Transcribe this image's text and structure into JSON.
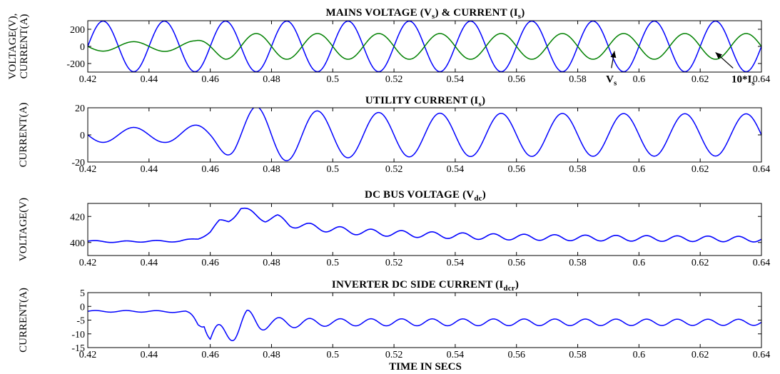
{
  "figure": {
    "xlabel": "TIME IN SECS"
  },
  "chart_data": [
    {
      "type": "line",
      "title": {
        "main": "MAINS VOLTAGE (V",
        "sub1": "s",
        "mid": ") & CURRENT (I",
        "sub2": "s",
        "end": ")"
      },
      "ylabel_lines": [
        "VOLTAGE(V),",
        "CURRENT(A)"
      ],
      "xlim": [
        0.42,
        0.64
      ],
      "ylim": [
        -300,
        300
      ],
      "xticks": [
        "0.42",
        "0.44",
        "0.46",
        "0.48",
        "0.5",
        "0.52",
        "0.54",
        "0.56",
        "0.58",
        "0.6",
        "0.62",
        "0.64"
      ],
      "yticks": [
        200,
        0,
        -200
      ],
      "frequency_hz": 50,
      "series": [
        {
          "name": "V",
          "name_sub": "s",
          "color": "#0000ff",
          "model": "sine",
          "x_start": 0.42,
          "x_end": 0.64,
          "amplitude_points": [
            [
              0.42,
              295
            ],
            [
              0.64,
              295
            ]
          ],
          "phase_deg": 0,
          "peak_at": 0.425
        },
        {
          "name": "10*I",
          "name_sub": "s",
          "color": "#008000",
          "model": "sine",
          "x_start": 0.42,
          "x_end": 0.64,
          "amplitude_points": [
            [
              0.42,
              55
            ],
            [
              0.44,
              55
            ],
            [
              0.455,
              65
            ],
            [
              0.465,
              150
            ],
            [
              0.48,
              150
            ],
            [
              0.64,
              150
            ]
          ],
          "phase_deg": 180,
          "peak_at": 0.435
        }
      ],
      "annotations": [
        {
          "label": "V",
          "sub": "s",
          "points_to": [
            0.592,
            -55
          ],
          "text_at": [
            0.591,
            -420
          ]
        },
        {
          "label": "10*I",
          "sub": "s",
          "points_to": [
            0.625,
            -70
          ],
          "text_at": [
            0.634,
            -420
          ]
        }
      ]
    },
    {
      "type": "line",
      "title": {
        "main": "UTILITY CURRENT (I",
        "sub1": "s",
        "end": ")"
      },
      "ylabel_lines": [
        "CURRENT(A)"
      ],
      "xlim": [
        0.42,
        0.64
      ],
      "ylim": [
        -20,
        20
      ],
      "xticks": [
        "0.42",
        "0.44",
        "0.46",
        "0.48",
        "0.5",
        "0.52",
        "0.54",
        "0.56",
        "0.58",
        "0.6",
        "0.62",
        "0.64"
      ],
      "yticks": [
        20,
        0,
        -20
      ],
      "frequency_hz": 50,
      "series": [
        {
          "name": "Is",
          "color": "#0000ff",
          "model": "sine",
          "x_start": 0.42,
          "x_end": 0.64,
          "amplitude_points": [
            [
              0.42,
              5.5
            ],
            [
              0.445,
              5.5
            ],
            [
              0.46,
              8
            ],
            [
              0.468,
              18
            ],
            [
              0.475,
              21
            ],
            [
              0.485,
              19
            ],
            [
              0.5,
              17
            ],
            [
              0.53,
              16
            ],
            [
              0.64,
              15.5
            ]
          ],
          "phase_deg": 0,
          "peak_at": 0.435
        }
      ]
    },
    {
      "type": "line",
      "title": {
        "main": "DC BUS VOLTAGE (V",
        "sub1": "dc",
        "end": ")"
      },
      "ylabel_lines": [
        "VOLTAGE(V)"
      ],
      "xlim": [
        0.42,
        0.64
      ],
      "ylim": [
        390,
        430
      ],
      "xticks": [
        "0.42",
        "0.44",
        "0.46",
        "0.48",
        "0.5",
        "0.52",
        "0.54",
        "0.56",
        "0.58",
        "0.6",
        "0.62",
        "0.64"
      ],
      "yticks": [
        420,
        400
      ],
      "series": [
        {
          "name": "Vdc",
          "color": "#0000ff",
          "model": "keypoints",
          "points": [
            [
              0.42,
              401
            ],
            [
              0.43,
              400.5
            ],
            [
              0.44,
              401
            ],
            [
              0.45,
              401
            ],
            [
              0.456,
              403
            ],
            [
              0.46,
              408
            ],
            [
              0.463,
              416
            ],
            [
              0.466,
              417
            ],
            [
              0.47,
              426
            ],
            [
              0.474,
              422
            ],
            [
              0.478,
              418
            ],
            [
              0.482,
              419
            ],
            [
              0.486,
              414
            ],
            [
              0.49,
              413
            ],
            [
              0.5,
              410
            ],
            [
              0.51,
              408
            ],
            [
              0.52,
              407
            ],
            [
              0.53,
              406
            ],
            [
              0.55,
              404.5
            ],
            [
              0.58,
              403.5
            ],
            [
              0.61,
              403
            ],
            [
              0.64,
              402.5
            ]
          ],
          "ripple": {
            "frequency_hz": 100,
            "amplitude_points": [
              [
                0.42,
                0.6
              ],
              [
                0.455,
                0.6
              ],
              [
                0.47,
                2.2
              ],
              [
                0.5,
                2.6
              ],
              [
                0.52,
                2.4
              ],
              [
                0.58,
                2.2
              ],
              [
                0.64,
                2.1
              ]
            ]
          }
        }
      ]
    },
    {
      "type": "line",
      "title": {
        "main": "INVERTER DC SIDE CURRENT (I",
        "sub1": "dcr",
        "end": ")"
      },
      "ylabel_lines": [
        "CURRENT(A)"
      ],
      "xlim": [
        0.42,
        0.64
      ],
      "ylim": [
        -15,
        5
      ],
      "xticks": [
        "0.42",
        "0.44",
        "0.46",
        "0.48",
        "0.5",
        "0.52",
        "0.54",
        "0.56",
        "0.58",
        "0.6",
        "0.62",
        "0.64"
      ],
      "yticks": [
        5,
        0,
        -5,
        -10,
        -15
      ],
      "series": [
        {
          "name": "Idcr",
          "color": "#0000ff",
          "model": "keypoints",
          "points": [
            [
              0.42,
              -1.8
            ],
            [
              0.44,
              -1.8
            ],
            [
              0.452,
              -2.0
            ],
            [
              0.456,
              -5.5
            ],
            [
              0.458,
              -4.5
            ],
            [
              0.46,
              -12
            ],
            [
              0.464,
              -10
            ],
            [
              0.468,
              -8
            ],
            [
              0.472,
              -5
            ],
            [
              0.476,
              -6
            ],
            [
              0.48,
              -6
            ],
            [
              0.49,
              -6
            ],
            [
              0.5,
              -5.8
            ],
            [
              0.52,
              -5.8
            ],
            [
              0.64,
              -5.8
            ]
          ],
          "ripple": {
            "frequency_hz": 100,
            "amplitude_points": [
              [
                0.42,
                0.3
              ],
              [
                0.452,
                0.3
              ],
              [
                0.456,
                2
              ],
              [
                0.46,
                4
              ],
              [
                0.47,
                4.2
              ],
              [
                0.48,
                2
              ],
              [
                0.5,
                1.3
              ],
              [
                0.64,
                1.1
              ]
            ]
          }
        }
      ]
    }
  ]
}
